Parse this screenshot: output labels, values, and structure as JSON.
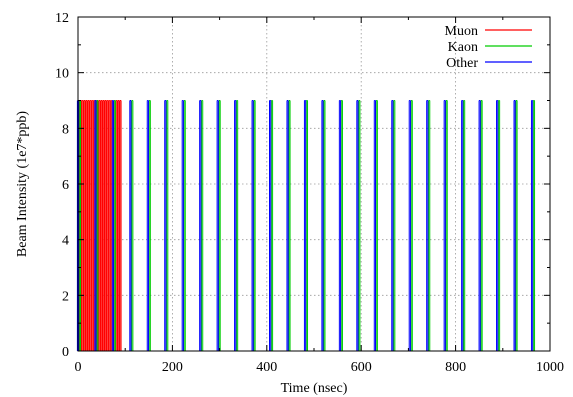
{
  "chart_data": {
    "type": "bar",
    "title": "",
    "xlabel": "Time (nsec)",
    "ylabel": "Beam Intensity (1e7*ppb)",
    "xlim": [
      0,
      1000
    ],
    "ylim": [
      0,
      12
    ],
    "xticks": [
      "0",
      "200",
      "400",
      "600",
      "800",
      "1000"
    ],
    "yticks": [
      "0",
      "2",
      "4",
      "6",
      "8",
      "10",
      "12"
    ],
    "grid": true,
    "legend_position": "top-right",
    "series": [
      {
        "name": "Muon",
        "color": "#ff0000",
        "x": [
          2,
          6,
          10,
          14,
          18,
          22,
          26,
          30,
          34,
          38,
          42,
          46,
          50,
          54,
          58,
          62,
          66,
          70,
          74,
          78,
          82,
          86,
          90
        ],
        "y": [
          9,
          9,
          9,
          9,
          9,
          9,
          9,
          9,
          9,
          9,
          9,
          9,
          9,
          9,
          9,
          9,
          9,
          9,
          9,
          9,
          9,
          9,
          9
        ]
      },
      {
        "name": "Kaon",
        "color": "#00cc00",
        "x": [
          4,
          41,
          78,
          115,
          152,
          189,
          226,
          263,
          300,
          337,
          374,
          411,
          448,
          485,
          522,
          559,
          596,
          633,
          670,
          707,
          744,
          781,
          818,
          855,
          892,
          929,
          966
        ],
        "y": [
          9,
          9,
          9,
          9,
          9,
          9,
          9,
          9,
          9,
          9,
          9,
          9,
          9,
          9,
          9,
          9,
          9,
          9,
          9,
          9,
          9,
          9,
          9,
          9,
          9,
          9,
          9
        ]
      },
      {
        "name": "Other",
        "color": "#0000ff",
        "x": [
          0,
          37,
          74,
          111,
          148,
          185,
          222,
          259,
          296,
          333,
          370,
          407,
          444,
          481,
          518,
          555,
          592,
          629,
          666,
          703,
          740,
          777,
          814,
          851,
          888,
          925,
          962
        ],
        "y": [
          9,
          9,
          9,
          9,
          9,
          9,
          9,
          9,
          9,
          9,
          9,
          9,
          9,
          9,
          9,
          9,
          9,
          9,
          9,
          9,
          9,
          9,
          9,
          9,
          9,
          9,
          9
        ]
      }
    ]
  }
}
